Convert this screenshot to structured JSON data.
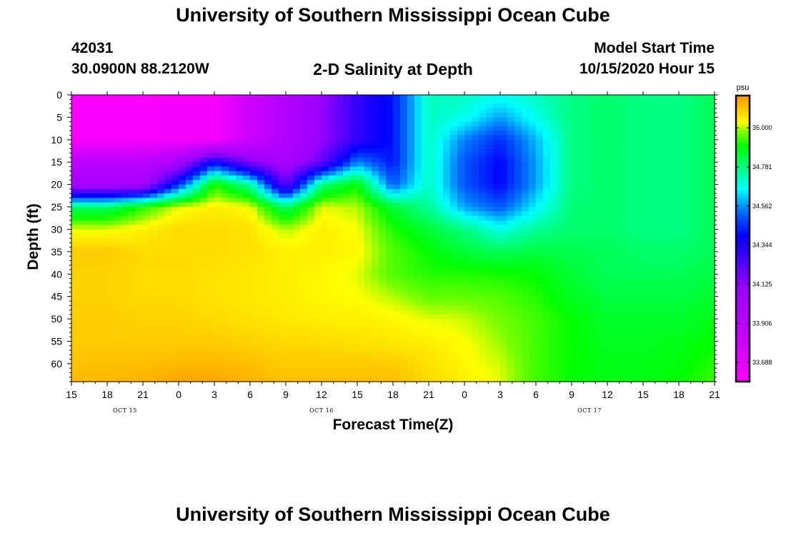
{
  "header": {
    "title": "University of Southern Mississippi Ocean Cube",
    "station_id": "42031",
    "location": "30.0900N 88.2120W",
    "plot_title": "2-D Salinity at Depth",
    "model_label": "Model Start Time",
    "model_time": "10/15/2020 Hour 15"
  },
  "footer": {
    "title": "University of Southern Mississippi Ocean Cube"
  },
  "chart_data": {
    "type": "heatmap",
    "title": "2-D Salinity at Depth",
    "xlabel": "Forecast Time(Z)",
    "ylabel": "Depth (ft)",
    "x_tick_labels": [
      "15",
      "18",
      "21",
      "0",
      "3",
      "6",
      "9",
      "12",
      "15",
      "18",
      "21",
      "0",
      "3",
      "6",
      "9",
      "12",
      "15",
      "18",
      "21"
    ],
    "x_range_hours": [
      0,
      54
    ],
    "x_tick_step_hours": 3,
    "day_labels": [
      {
        "label": "OCT 15",
        "hour": 4.5
      },
      {
        "label": "OCT 16",
        "hour": 21
      },
      {
        "label": "OCT 17",
        "hour": 43.5
      }
    ],
    "y_ticks": [
      0,
      5,
      10,
      15,
      20,
      25,
      30,
      35,
      40,
      45,
      50,
      55,
      60
    ],
    "y_range": [
      0,
      64
    ],
    "y_reversed": true,
    "colorbar": {
      "unit": "psu",
      "min": 33.58,
      "max": 35.18,
      "tick_values": [
        33.688,
        33.906,
        34.125,
        34.344,
        34.562,
        34.781,
        35.0
      ],
      "tick_labels": [
        "33.688",
        "33.906",
        "34.125",
        "34.344",
        "34.562",
        "34.781",
        "35.000"
      ],
      "color_stops": [
        {
          "value": 33.58,
          "color": "#ff00ff"
        },
        {
          "value": 33.8,
          "color": "#cc00ff"
        },
        {
          "value": 34.1,
          "color": "#9900ff"
        },
        {
          "value": 34.4,
          "color": "#0000ff"
        },
        {
          "value": 34.55,
          "color": "#0080ff"
        },
        {
          "value": 34.66,
          "color": "#00ffff"
        },
        {
          "value": 34.78,
          "color": "#00ff80"
        },
        {
          "value": 34.9,
          "color": "#00ff00"
        },
        {
          "value": 34.98,
          "color": "#80ff00"
        },
        {
          "value": 35.03,
          "color": "#ffff00"
        },
        {
          "value": 35.1,
          "color": "#ffcc00"
        },
        {
          "value": 35.18,
          "color": "#ff9900"
        }
      ]
    },
    "grid_x_hours": [
      0,
      3,
      6,
      9,
      12,
      15,
      18,
      21,
      24,
      27,
      30,
      33,
      36,
      39,
      42,
      45,
      48,
      51,
      54
    ],
    "grid_depth_ft": [
      0,
      5,
      10,
      15,
      20,
      25,
      30,
      35,
      40,
      45,
      50,
      55,
      60,
      64
    ],
    "salinity_psu": [
      [
        33.6,
        33.6,
        33.6,
        33.62,
        33.62,
        33.8,
        33.95,
        34.1,
        34.3,
        34.42,
        34.72,
        34.72,
        34.68,
        34.72,
        34.78,
        34.8,
        34.78,
        34.78,
        34.82
      ],
      [
        33.6,
        33.6,
        33.6,
        33.62,
        33.62,
        33.8,
        33.95,
        34.1,
        34.3,
        34.42,
        34.72,
        34.68,
        34.58,
        34.68,
        34.78,
        34.8,
        34.78,
        34.78,
        34.82
      ],
      [
        33.6,
        33.6,
        33.6,
        33.62,
        33.62,
        33.8,
        33.95,
        34.1,
        34.3,
        34.42,
        34.72,
        34.55,
        34.45,
        34.6,
        34.78,
        34.8,
        34.78,
        34.78,
        34.82
      ],
      [
        33.9,
        33.9,
        33.9,
        34.0,
        34.4,
        34.15,
        34.0,
        34.2,
        34.55,
        34.42,
        34.72,
        34.5,
        34.4,
        34.58,
        34.78,
        34.8,
        34.78,
        34.78,
        34.82
      ],
      [
        34.0,
        34.0,
        34.0,
        34.45,
        34.92,
        34.75,
        34.2,
        34.78,
        34.9,
        34.5,
        34.72,
        34.5,
        34.4,
        34.58,
        34.78,
        34.8,
        34.78,
        34.78,
        34.82
      ],
      [
        34.8,
        34.8,
        34.92,
        35.02,
        35.05,
        35.03,
        34.8,
        35.02,
        35.0,
        34.85,
        34.76,
        34.58,
        34.5,
        34.65,
        34.79,
        34.8,
        34.78,
        34.78,
        34.82
      ],
      [
        35.02,
        35.02,
        35.05,
        35.08,
        35.08,
        35.07,
        35.0,
        35.05,
        35.03,
        34.92,
        34.85,
        34.78,
        34.68,
        34.76,
        34.8,
        34.8,
        34.78,
        34.78,
        34.82
      ],
      [
        35.1,
        35.1,
        35.08,
        35.08,
        35.08,
        35.07,
        35.05,
        35.05,
        35.04,
        34.95,
        34.9,
        34.85,
        34.82,
        34.84,
        34.83,
        34.82,
        34.8,
        34.8,
        34.82
      ],
      [
        35.09,
        35.09,
        35.08,
        35.08,
        35.07,
        35.06,
        35.05,
        35.04,
        35.02,
        34.95,
        34.92,
        34.92,
        34.91,
        34.9,
        34.85,
        34.82,
        34.82,
        34.82,
        34.84
      ],
      [
        35.09,
        35.09,
        35.08,
        35.08,
        35.07,
        35.06,
        35.05,
        35.04,
        35.03,
        35.0,
        34.96,
        34.96,
        34.95,
        34.92,
        34.87,
        34.84,
        34.84,
        34.84,
        34.86
      ],
      [
        35.1,
        35.1,
        35.09,
        35.09,
        35.08,
        35.07,
        35.06,
        35.05,
        35.05,
        35.04,
        35.02,
        35.01,
        34.97,
        34.94,
        34.9,
        34.86,
        34.86,
        34.86,
        34.88
      ],
      [
        35.1,
        35.1,
        35.1,
        35.1,
        35.1,
        35.09,
        35.08,
        35.08,
        35.07,
        35.06,
        35.05,
        35.03,
        34.99,
        34.94,
        34.9,
        34.87,
        34.87,
        34.88,
        34.9
      ],
      [
        35.12,
        35.12,
        35.12,
        35.13,
        35.13,
        35.12,
        35.1,
        35.1,
        35.1,
        35.1,
        35.07,
        35.04,
        35.01,
        34.94,
        34.9,
        34.88,
        34.88,
        34.89,
        34.92
      ],
      [
        35.13,
        35.13,
        35.14,
        35.16,
        35.16,
        35.14,
        35.12,
        35.12,
        35.12,
        35.12,
        35.08,
        35.05,
        35.02,
        34.94,
        34.9,
        34.88,
        34.88,
        34.9,
        34.94
      ]
    ]
  }
}
